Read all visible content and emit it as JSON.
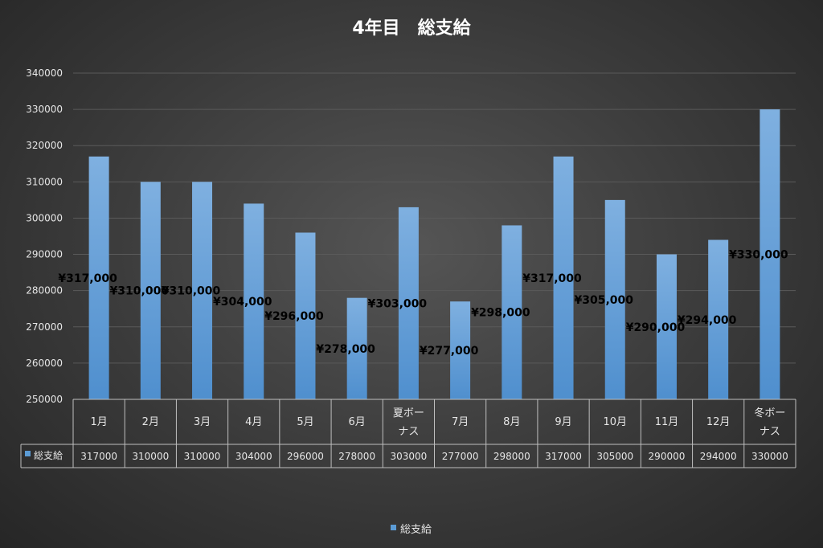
{
  "chart_data": {
    "type": "bar",
    "title": "4年目　総支給",
    "categories": [
      "1月",
      "2月",
      "3月",
      "4月",
      "5月",
      "6月",
      "夏ボーナス",
      "7月",
      "8月",
      "9月",
      "10月",
      "11月",
      "12月",
      "冬ボーナス"
    ],
    "series": [
      {
        "name": "総支給",
        "values": [
          317000,
          310000,
          310000,
          304000,
          296000,
          278000,
          303000,
          277000,
          298000,
          317000,
          305000,
          290000,
          294000,
          330000
        ],
        "data_labels": [
          "¥317,000",
          "¥310,000",
          "¥310,000",
          "¥304,000",
          "¥296,000",
          "¥278,000",
          "¥303,000",
          "¥277,000",
          "¥298,000",
          "¥317,000",
          "¥305,000",
          "¥290,000",
          "¥294,000",
          "¥330,000"
        ],
        "table_values": [
          "317000",
          "310000",
          "310000",
          "304000",
          "296000",
          "278000",
          "303000",
          "277000",
          "298000",
          "317000",
          "305000",
          "290000",
          "294000",
          "330000"
        ]
      }
    ],
    "ylim": [
      250000,
      340000
    ],
    "yticks": [
      "250000",
      "260000",
      "270000",
      "280000",
      "290000",
      "300000",
      "310000",
      "320000",
      "330000",
      "340000"
    ],
    "grid": true,
    "legend": "bottom",
    "data_table": true
  },
  "colors": {
    "bar": "#5b9bd5",
    "bar_light": "#7fb0e0",
    "grid": "#5a5a5a",
    "table_line": "#bfbfbf",
    "text": "#e6e6e6",
    "label": "#000000"
  }
}
